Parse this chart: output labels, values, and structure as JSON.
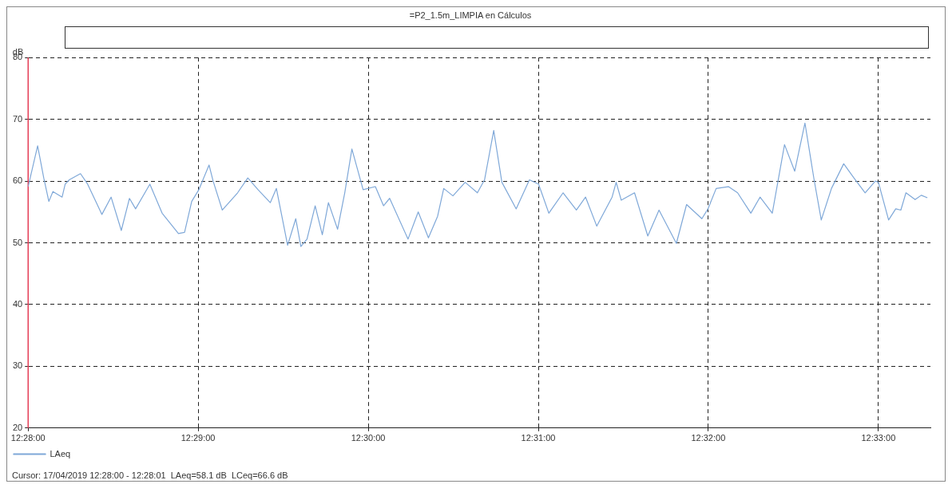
{
  "chart_data": {
    "type": "line",
    "title": "=P2_1.5m_LIMPIA en Cálculos",
    "ylabel": "dB",
    "x": [
      12.46667,
      12.4676,
      12.4682,
      12.4687,
      12.4691,
      12.47,
      12.4703,
      12.4707,
      12.4718,
      12.4725,
      12.4739,
      12.4748,
      12.4758,
      12.4766,
      12.4772,
      12.4786,
      12.4798,
      12.4814,
      12.482,
      12.4827,
      12.4834,
      12.4844,
      12.4848,
      12.4857,
      12.4872,
      12.4882,
      12.4892,
      12.4904,
      12.491,
      12.4921,
      12.4929,
      12.4934,
      12.494,
      12.4948,
      12.4955,
      12.4961,
      12.497,
      12.4977,
      12.4984,
      12.4995,
      12.5007,
      12.5015,
      12.5021,
      12.5039,
      12.5049,
      12.5059,
      12.5068,
      12.5074,
      12.5083,
      12.5095,
      12.5107,
      12.5114,
      12.5123,
      12.5131,
      12.5145,
      12.5158,
      12.5167,
      12.5177,
      12.5191,
      12.5204,
      12.5213,
      12.5224,
      12.5239,
      12.5243,
      12.5248,
      12.5261,
      12.5274,
      12.5285,
      12.5302,
      12.5312,
      12.5327,
      12.5333,
      12.5341,
      12.5353,
      12.5362,
      12.5375,
      12.5384,
      12.5396,
      12.5408,
      12.5418,
      12.5428,
      12.5437,
      12.5444,
      12.5454,
      12.5466,
      12.5476,
      12.5487,
      12.5497,
      12.55,
      12.551,
      12.5517,
      12.5522,
      12.5527,
      12.5536,
      12.5542,
      12.5548
    ],
    "series": [
      {
        "name": "LAeq",
        "color": "#7fa8d8",
        "values": [
          59.1,
          65.7,
          60.5,
          56.7,
          58.3,
          57.4,
          59.5,
          60.2,
          61.2,
          59.5,
          54.6,
          57.4,
          52.0,
          57.2,
          55.5,
          59.5,
          54.8,
          51.5,
          51.7,
          56.7,
          58.6,
          62.6,
          60.0,
          55.3,
          58.1,
          60.5,
          58.6,
          56.5,
          58.8,
          49.6,
          53.9,
          49.4,
          50.6,
          56.0,
          51.3,
          56.5,
          52.2,
          58.1,
          65.2,
          58.6,
          59.1,
          56.0,
          57.2,
          50.6,
          55.0,
          50.8,
          54.3,
          58.8,
          57.6,
          59.8,
          58.1,
          60.2,
          68.2,
          59.8,
          55.5,
          60.2,
          59.5,
          54.8,
          58.1,
          55.3,
          57.4,
          52.7,
          57.4,
          59.8,
          56.9,
          58.1,
          51.1,
          55.3,
          49.9,
          56.2,
          53.9,
          55.5,
          58.8,
          59.1,
          58.1,
          54.8,
          57.4,
          54.8,
          65.9,
          61.6,
          69.4,
          60.2,
          53.7,
          58.8,
          62.8,
          60.5,
          58.1,
          60.0,
          59.8,
          53.7,
          55.5,
          55.3,
          58.1,
          57.0,
          57.7,
          57.3
        ]
      }
    ],
    "xlim": [
      12.46667,
      12.5551
    ],
    "xticks": [
      {
        "value": 12.46667,
        "label": "12:28:00"
      },
      {
        "value": 12.48333,
        "label": "12:29:00"
      },
      {
        "value": 12.5,
        "label": "12:30:00"
      },
      {
        "value": 12.51667,
        "label": "12:31:00"
      },
      {
        "value": 12.53333,
        "label": "12:32:00"
      },
      {
        "value": 12.55,
        "label": "12:33:00"
      }
    ],
    "ylim": [
      20,
      80
    ],
    "yticks": [
      20,
      30,
      40,
      50,
      60,
      70,
      80
    ],
    "grid": true,
    "line_style": "solid",
    "marker": "none",
    "legend": "bottom left",
    "ref_lines": [
      {
        "axis": "x",
        "value": 12.46667,
        "color": "#e8405a"
      }
    ],
    "annotations": [
      "Cursor: 17/04/2019 12:28:00 - 12:28:01  LAeq=58.1 dB  LCeq=66.6 dB"
    ]
  }
}
